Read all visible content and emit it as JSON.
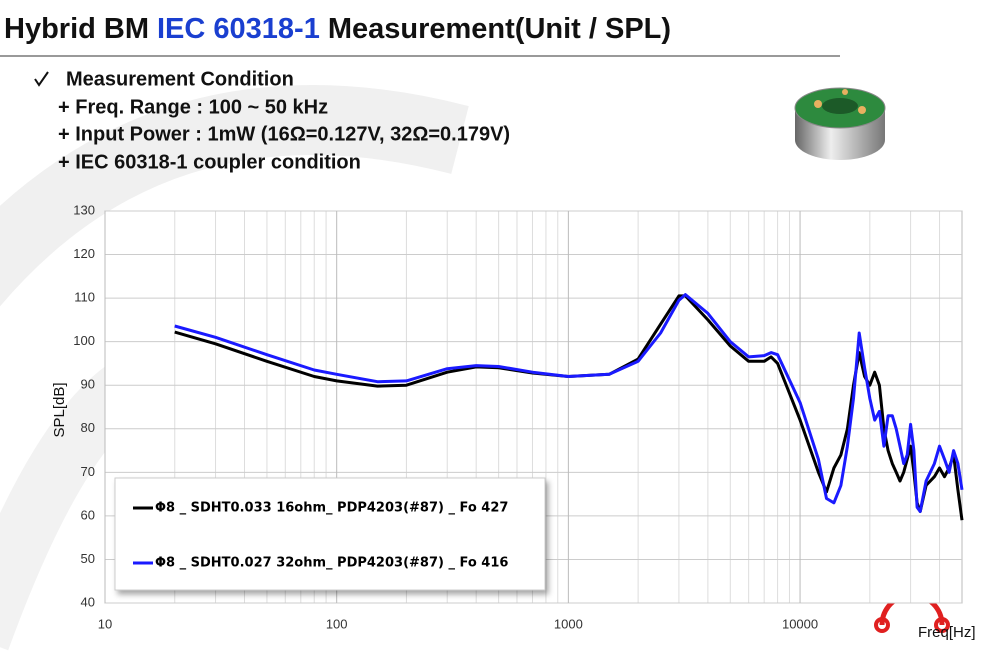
{
  "title": [
    "Hybrid BM",
    "IEC 60318-1",
    "Measurement(Unit / SPL)"
  ],
  "condition_heading": "Measurement Condition",
  "conditions": [
    "+ Freq. Range : 100 ~ 50 kHz",
    "+ Input Power : 1mW (16Ω=0.127V,  32Ω=0.179V)",
    "+ IEC 60318-1 coupler condition"
  ],
  "chart_data": {
    "type": "line",
    "x_label": "Freq[Hz]",
    "y_label": "SPL[dB]",
    "x_scale": "log",
    "grid": true,
    "xlim": [
      10,
      50000
    ],
    "xticks": [
      10,
      100,
      1000,
      10000
    ],
    "ylim": [
      40,
      130
    ],
    "yticks": [
      40,
      50,
      60,
      70,
      80,
      90,
      100,
      110,
      120,
      130
    ],
    "legend_position": "lower left",
    "x": [
      20,
      30,
      50,
      80,
      100,
      150,
      200,
      300,
      400,
      500,
      700,
      1000,
      1500,
      2000,
      2500,
      3000,
      3200,
      4000,
      5000,
      6000,
      7000,
      7500,
      8000,
      10000,
      12000,
      13000,
      14000,
      15000,
      16000,
      17000,
      18000,
      19000,
      20000,
      21000,
      22000,
      23000,
      24000,
      25000,
      26000,
      27000,
      28000,
      29000,
      30000,
      31000,
      32000,
      33000,
      35000,
      38000,
      40000,
      42000,
      44000,
      46000,
      48000,
      50000
    ],
    "series": [
      {
        "name": "Φ8 _ SDHT0.033 16ohm_ PDP4203(#87) _ Fo 427",
        "color": "#000000",
        "values": [
          102.2,
          99.5,
          95.5,
          92,
          91,
          89.8,
          90,
          93,
          94.2,
          94,
          92.8,
          92,
          92.5,
          96,
          104,
          110.5,
          110.5,
          105,
          99,
          95.5,
          95.5,
          96.5,
          95,
          82,
          70,
          65.5,
          71,
          74,
          80,
          90,
          97.5,
          92,
          90,
          93,
          90,
          80,
          75,
          72,
          70,
          68,
          70,
          73,
          76,
          70,
          63,
          61,
          67,
          69,
          71,
          69,
          71,
          74,
          66,
          59
        ]
      },
      {
        "name": "Φ8 _ SDHT0.027 32ohm_ PDP4203(#87) _ Fo 416",
        "color": "#1a1aff",
        "values": [
          103.6,
          101,
          97,
          93.5,
          92.5,
          90.8,
          91,
          93.8,
          94.5,
          94.3,
          93,
          92,
          92.5,
          95.5,
          102,
          109.5,
          110.8,
          106.5,
          100,
          96.5,
          96.8,
          97.5,
          97,
          86,
          73,
          64,
          63,
          67,
          76,
          87,
          102,
          94,
          87,
          82,
          84,
          76,
          83,
          83,
          80,
          76,
          72,
          74,
          81,
          75,
          62,
          61,
          68,
          72,
          76,
          73,
          70,
          75,
          72,
          66
        ]
      }
    ]
  }
}
